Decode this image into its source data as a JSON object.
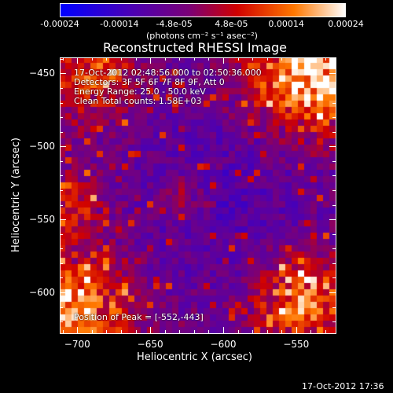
{
  "colorbar": {
    "tick_labels": [
      "-0.00024",
      "-0.00014",
      "-4.8e-05",
      "4.8e-05",
      "0.00014",
      "0.00024"
    ],
    "tick_values": [
      -0.00024,
      -0.00014,
      -4.8e-05,
      4.8e-05,
      0.00014,
      0.00024
    ],
    "range": [
      -0.00024,
      0.00024
    ],
    "unit_label": "(photons cm⁻² s⁻¹ asec⁻²)",
    "colors": [
      "#0000ff",
      "#4b00b4",
      "#7a0078",
      "#d00000",
      "#ff7800",
      "#ffffff"
    ]
  },
  "chart_data": {
    "type": "heatmap",
    "title": "Reconstructed RHESSI Image",
    "xlabel": "Heliocentric X (arcsec)",
    "ylabel": "Heliocentric Y (arcsec)",
    "xlim": [
      -712,
      -523
    ],
    "ylim": [
      -628,
      -439
    ],
    "xticks": [
      -700,
      -650,
      -600,
      -550
    ],
    "yticks": [
      -600,
      -550,
      -500,
      -450
    ],
    "xtick_labels": [
      "−700",
      "−650",
      "−600",
      "−550"
    ],
    "ytick_labels": [
      "−600",
      "−550",
      "−500",
      "−450"
    ],
    "peak_position": [
      -552,
      -443
    ],
    "annotations": {
      "time_range": "17-Oct-2012 02:48:56.000 to 02:50:36.000",
      "detectors": "Detectors: 3F 5F 6F 7F 8F 9F, Att 0",
      "energy_range": "Energy Range: 25.0 - 50.0 keV",
      "clean": "Clean      Total counts: 1.58E+03",
      "peak": "Position of Peak = [-552,-443]"
    }
  },
  "footer": {
    "timestamp": "17-Oct-2012 17:36"
  }
}
